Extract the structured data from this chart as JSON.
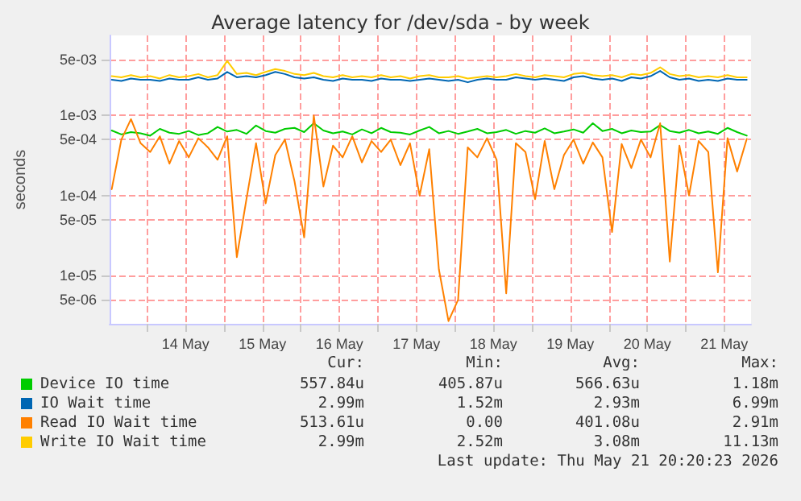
{
  "chart_data": {
    "type": "line",
    "title": "Average latency for /dev/sda - by week",
    "ylabel": "seconds",
    "x": [
      "2026-05-13T13:00",
      "2026-05-13T16:00",
      "2026-05-13T19:00",
      "2026-05-13T22:00",
      "2026-05-14T01:00",
      "2026-05-14T04:00",
      "2026-05-14T07:00",
      "2026-05-14T10:00",
      "2026-05-14T13:00",
      "2026-05-14T16:00",
      "2026-05-14T19:00",
      "2026-05-14T22:00",
      "2026-05-15T01:00",
      "2026-05-15T04:00",
      "2026-05-15T07:00",
      "2026-05-15T10:00",
      "2026-05-15T13:00",
      "2026-05-15T16:00",
      "2026-05-15T19:00",
      "2026-05-15T22:00",
      "2026-05-16T01:00",
      "2026-05-16T04:00",
      "2026-05-16T07:00",
      "2026-05-16T10:00",
      "2026-05-16T13:00",
      "2026-05-16T16:00",
      "2026-05-16T19:00",
      "2026-05-16T22:00",
      "2026-05-17T01:00",
      "2026-05-17T04:00",
      "2026-05-17T07:00",
      "2026-05-17T10:00",
      "2026-05-17T13:00",
      "2026-05-17T16:00",
      "2026-05-17T19:00",
      "2026-05-17T22:00",
      "2026-05-18T01:00",
      "2026-05-18T04:00",
      "2026-05-18T07:00",
      "2026-05-18T10:00",
      "2026-05-18T13:00",
      "2026-05-18T16:00",
      "2026-05-18T19:00",
      "2026-05-18T22:00",
      "2026-05-19T01:00",
      "2026-05-19T04:00",
      "2026-05-19T07:00",
      "2026-05-19T10:00",
      "2026-05-19T13:00",
      "2026-05-19T16:00",
      "2026-05-19T19:00",
      "2026-05-19T22:00",
      "2026-05-20T01:00",
      "2026-05-20T04:00",
      "2026-05-20T07:00",
      "2026-05-20T10:00",
      "2026-05-20T13:00",
      "2026-05-20T16:00",
      "2026-05-20T19:00",
      "2026-05-20T22:00",
      "2026-05-21T01:00",
      "2026-05-21T04:00",
      "2026-05-21T07:00",
      "2026-05-21T10:00",
      "2026-05-21T13:00",
      "2026-05-21T16:00",
      "2026-05-21T19:00"
    ],
    "series": [
      {
        "name": "Device IO time",
        "color": "#00cc00",
        "values": [
          0.00065,
          0.00058,
          0.00062,
          0.0006,
          0.00056,
          0.00068,
          0.00061,
          0.00059,
          0.00064,
          0.00057,
          0.0006,
          0.00072,
          0.00063,
          0.00066,
          0.00059,
          0.00075,
          0.00064,
          0.00061,
          0.00068,
          0.0007,
          0.00062,
          0.0008,
          0.00065,
          0.0006,
          0.00063,
          0.00058,
          0.00067,
          0.0006,
          0.0007,
          0.00062,
          0.00061,
          0.00058,
          0.00065,
          0.00072,
          0.0006,
          0.00064,
          0.00059,
          0.00063,
          0.00068,
          0.0006,
          0.00062,
          0.00066,
          0.00059,
          0.00064,
          0.00061,
          0.00069,
          0.0006,
          0.00063,
          0.00067,
          0.00061,
          0.0008,
          0.00064,
          0.00068,
          0.0006,
          0.00065,
          0.00062,
          0.00063,
          0.00076,
          0.00064,
          0.00061,
          0.00066,
          0.0006,
          0.00063,
          0.00059,
          0.0007,
          0.00062,
          0.00056
        ]
      },
      {
        "name": "IO Wait time",
        "color": "#0066b3",
        "values": [
          0.0028,
          0.0027,
          0.0029,
          0.0028,
          0.0028,
          0.0027,
          0.0029,
          0.0028,
          0.0028,
          0.003,
          0.0028,
          0.0029,
          0.0035,
          0.003,
          0.0031,
          0.003,
          0.0032,
          0.0035,
          0.0033,
          0.003,
          0.0029,
          0.003,
          0.0028,
          0.0027,
          0.0029,
          0.0028,
          0.0028,
          0.0027,
          0.0029,
          0.0028,
          0.0028,
          0.0027,
          0.0028,
          0.0029,
          0.0028,
          0.0027,
          0.0028,
          0.0026,
          0.0028,
          0.0029,
          0.0028,
          0.0028,
          0.003,
          0.0029,
          0.0028,
          0.0029,
          0.0028,
          0.0027,
          0.003,
          0.0031,
          0.0029,
          0.0028,
          0.0029,
          0.0027,
          0.003,
          0.0029,
          0.0031,
          0.0036,
          0.003,
          0.0028,
          0.0029,
          0.0027,
          0.0028,
          0.0027,
          0.0029,
          0.0028,
          0.0028
        ]
      },
      {
        "name": "Read IO Wait time",
        "color": "#ff8000",
        "values": [
          0.00012,
          0.0005,
          0.0009,
          0.00045,
          0.00035,
          0.00055,
          0.00025,
          0.00048,
          0.0003,
          0.00052,
          0.0004,
          0.00028,
          0.00055,
          1.7e-05,
          9e-05,
          0.00045,
          8e-05,
          0.00032,
          0.0005,
          0.00015,
          3e-05,
          0.001,
          0.00013,
          0.00042,
          0.0003,
          0.00055,
          0.00026,
          0.00048,
          0.00035,
          0.0005,
          0.00024,
          0.00045,
          0.0001,
          0.00038,
          1.2e-05,
          2.7e-06,
          5e-06,
          0.0004,
          0.0003,
          0.00052,
          0.00028,
          6e-06,
          0.00045,
          0.00035,
          9e-05,
          0.00048,
          0.00012,
          0.00032,
          0.0005,
          0.00025,
          0.00046,
          0.0003,
          3.5e-05,
          0.00044,
          0.00022,
          0.0005,
          0.0003,
          0.0008,
          1.5e-05,
          0.00042,
          0.0001,
          0.00048,
          0.00035,
          1.1e-05,
          0.00052,
          0.0002,
          0.00051
        ]
      },
      {
        "name": "Write IO Wait time",
        "color": "#ffcc00",
        "values": [
          0.0031,
          0.003,
          0.0032,
          0.003,
          0.0031,
          0.0029,
          0.0032,
          0.003,
          0.0031,
          0.0033,
          0.003,
          0.0032,
          0.0048,
          0.0033,
          0.0034,
          0.0032,
          0.0035,
          0.0038,
          0.0036,
          0.0033,
          0.0032,
          0.0034,
          0.0031,
          0.003,
          0.0032,
          0.003,
          0.0031,
          0.003,
          0.0032,
          0.003,
          0.0031,
          0.0029,
          0.0031,
          0.0032,
          0.003,
          0.003,
          0.0031,
          0.0029,
          0.003,
          0.0031,
          0.003,
          0.0031,
          0.0033,
          0.0031,
          0.003,
          0.0032,
          0.0031,
          0.003,
          0.0033,
          0.0034,
          0.0032,
          0.0031,
          0.0032,
          0.003,
          0.0033,
          0.0032,
          0.0034,
          0.004,
          0.0033,
          0.0031,
          0.0032,
          0.003,
          0.0031,
          0.003,
          0.0032,
          0.003,
          0.003
        ]
      }
    ],
    "log": "y",
    "ylim": [
      2.5e-06,
      0.01
    ],
    "yticks": [
      {
        "value": 5e-06,
        "label": "5e-06"
      },
      {
        "value": 1e-05,
        "label": "1e-05"
      },
      {
        "value": 5e-05,
        "label": "5e-05"
      },
      {
        "value": 0.0001,
        "label": "1e-04"
      },
      {
        "value": 0.0005,
        "label": "5e-04"
      },
      {
        "value": 0.001,
        "label": "1e-03"
      },
      {
        "value": 0.005,
        "label": "5e-03"
      }
    ],
    "xlim": [
      "2026-05-13T12:20",
      "2026-05-21T20:20"
    ],
    "xticks": [
      {
        "value": "2026-05-14T00:00",
        "label": null
      },
      {
        "value": "2026-05-14T12:00",
        "label": "14 May"
      },
      {
        "value": "2026-05-15T00:00",
        "label": null
      },
      {
        "value": "2026-05-15T12:00",
        "label": "15 May"
      },
      {
        "value": "2026-05-16T00:00",
        "label": null
      },
      {
        "value": "2026-05-16T12:00",
        "label": "16 May"
      },
      {
        "value": "2026-05-17T00:00",
        "label": null
      },
      {
        "value": "2026-05-17T12:00",
        "label": "17 May"
      },
      {
        "value": "2026-05-18T00:00",
        "label": null
      },
      {
        "value": "2026-05-18T12:00",
        "label": "18 May"
      },
      {
        "value": "2026-05-19T00:00",
        "label": null
      },
      {
        "value": "2026-05-19T12:00",
        "label": "19 May"
      },
      {
        "value": "2026-05-20T00:00",
        "label": null
      },
      {
        "value": "2026-05-20T12:00",
        "label": "20 May"
      },
      {
        "value": "2026-05-21T00:00",
        "label": null
      },
      {
        "value": "2026-05-21T12:00",
        "label": "21 May"
      }
    ],
    "grid": true,
    "legend": "bottom",
    "marker": "none",
    "line_style": "solid",
    "annotations": [
      "Cur:",
      "Min:",
      "Avg:",
      "Max:",
      "557.84u",
      "405.87u",
      "566.63u",
      "1.18m",
      "2.99m",
      "1.52m",
      "2.93m",
      "6.99m",
      "513.61u",
      "0.00",
      "401.08u",
      "2.91m",
      "2.99m",
      "2.52m",
      "3.08m",
      "11.13m",
      "Last update: Thu May 21 20:20:23 2026"
    ]
  }
}
